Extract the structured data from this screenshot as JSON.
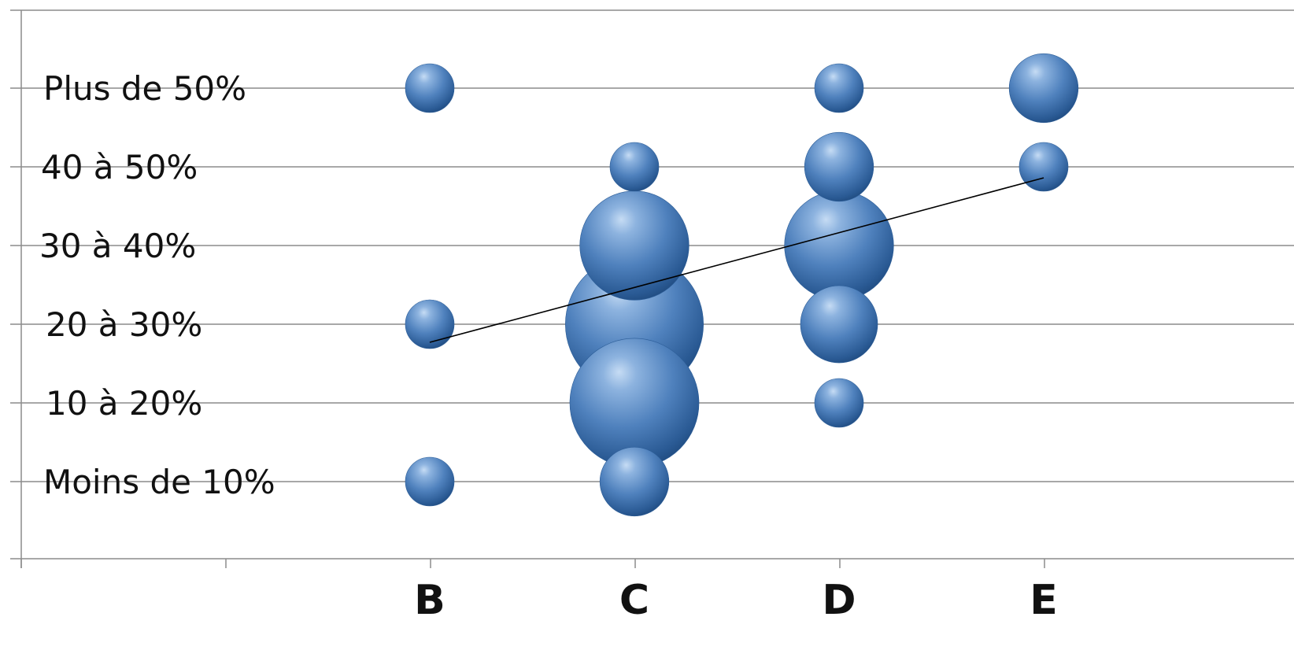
{
  "chart_data": {
    "type": "bubble",
    "categories": [
      "B",
      "C",
      "D",
      "E"
    ],
    "y_categories": [
      "Moins de 10%",
      "10 à 20%",
      "20 à 30%",
      "30 à 40%",
      "40 à 50%",
      "Plus de 50%"
    ],
    "points": [
      {
        "x": "B",
        "y": "Plus de 50%",
        "size": 1
      },
      {
        "x": "B",
        "y": "20 à 30%",
        "size": 1
      },
      {
        "x": "B",
        "y": "Moins de 10%",
        "size": 1
      },
      {
        "x": "C",
        "y": "40 à 50%",
        "size": 1
      },
      {
        "x": "C",
        "y": "30 à 40%",
        "size": 5
      },
      {
        "x": "C",
        "y": "20 à 30%",
        "size": 8
      },
      {
        "x": "C",
        "y": "10 à 20%",
        "size": 7
      },
      {
        "x": "C",
        "y": "Moins de 10%",
        "size": 2
      },
      {
        "x": "D",
        "y": "Plus de 50%",
        "size": 1
      },
      {
        "x": "D",
        "y": "40 à 50%",
        "size": 2
      },
      {
        "x": "D",
        "y": "30 à 40%",
        "size": 5
      },
      {
        "x": "D",
        "y": "20 à 30%",
        "size": 2.5
      },
      {
        "x": "D",
        "y": "10 à 20%",
        "size": 1
      },
      {
        "x": "E",
        "y": "Plus de 50%",
        "size": 2
      },
      {
        "x": "E",
        "y": "40 à 50%",
        "size": 1
      }
    ],
    "trendline": {
      "from": {
        "x": "B",
        "y": 1.77
      },
      "to": {
        "x": "E",
        "y": 3.86
      }
    },
    "grid": true,
    "legend": "none",
    "colors": {
      "bubble_light": "#a9c8ea",
      "bubble_mid": "#4f81bd",
      "bubble_dark": "#1f4a7e",
      "grid": "#8c8c8c",
      "trendline": "#000000"
    }
  }
}
